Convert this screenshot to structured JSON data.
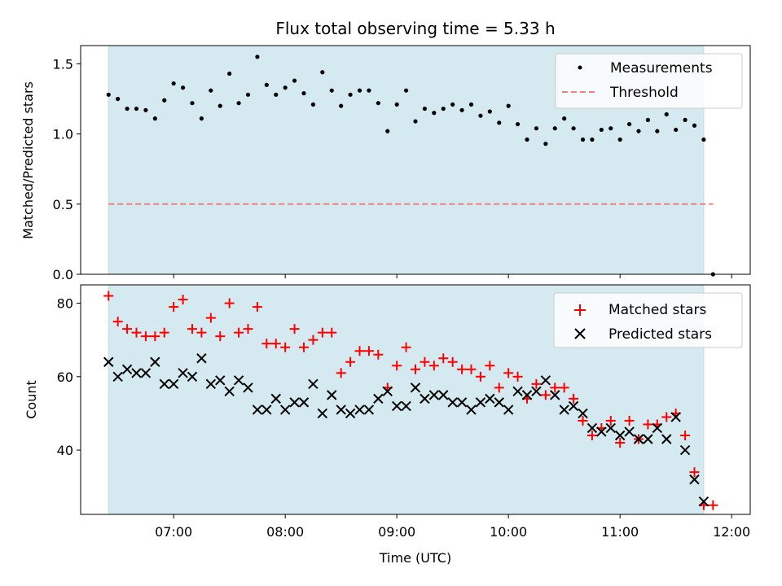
{
  "chart_data": [
    {
      "type": "scatter",
      "panel": "top",
      "title": "Flux total observing time = 5.33 h",
      "ylabel": "Matched/Predicted stars",
      "ylim": [
        0,
        1.63
      ],
      "yticks": [
        0.0,
        0.5,
        1.0,
        1.5
      ],
      "ytick_labels": [
        "0.0",
        "0.5",
        "1.0",
        "1.5"
      ],
      "shaded_span": {
        "start": "06:25",
        "end": "11:45",
        "color": "#d4eaf0"
      },
      "legend": {
        "placement": "top-right",
        "entries": [
          "Measurements",
          "Threshold"
        ]
      },
      "threshold": {
        "name": "Threshold",
        "value": 0.5,
        "x_start": "06:25",
        "x_end": "11:50",
        "color": "#f08080"
      },
      "series": [
        {
          "name": "Measurements",
          "color": "#000000",
          "x": [
            "06:25",
            "06:30",
            "06:35",
            "06:40",
            "06:45",
            "06:50",
            "06:55",
            "07:00",
            "07:05",
            "07:10",
            "07:15",
            "07:20",
            "07:25",
            "07:30",
            "07:35",
            "07:40",
            "07:45",
            "07:50",
            "07:55",
            "08:00",
            "08:05",
            "08:10",
            "08:15",
            "08:20",
            "08:25",
            "08:30",
            "08:35",
            "08:40",
            "08:45",
            "08:50",
            "08:55",
            "09:00",
            "09:05",
            "09:10",
            "09:15",
            "09:20",
            "09:25",
            "09:30",
            "09:35",
            "09:40",
            "09:45",
            "09:50",
            "09:55",
            "10:00",
            "10:05",
            "10:10",
            "10:15",
            "10:20",
            "10:25",
            "10:30",
            "10:35",
            "10:40",
            "10:45",
            "10:50",
            "10:55",
            "11:00",
            "11:05",
            "11:10",
            "11:15",
            "11:20",
            "11:25",
            "11:30",
            "11:35",
            "11:40",
            "11:45",
            "11:50"
          ],
          "y": [
            1.28,
            1.25,
            1.18,
            1.18,
            1.17,
            1.11,
            1.24,
            1.36,
            1.33,
            1.22,
            1.11,
            1.31,
            1.2,
            1.43,
            1.22,
            1.28,
            1.55,
            1.35,
            1.28,
            1.33,
            1.38,
            1.29,
            1.21,
            1.44,
            1.31,
            1.2,
            1.28,
            1.31,
            1.31,
            1.22,
            1.02,
            1.21,
            1.31,
            1.09,
            1.18,
            1.15,
            1.18,
            1.21,
            1.17,
            1.21,
            1.13,
            1.16,
            1.08,
            1.2,
            1.07,
            0.96,
            1.04,
            0.93,
            1.04,
            1.11,
            1.04,
            0.96,
            0.96,
            1.03,
            1.04,
            0.96,
            1.07,
            1.02,
            1.1,
            1.02,
            1.14,
            1.03,
            1.1,
            1.06,
            0.96,
            0.0
          ]
        }
      ]
    },
    {
      "type": "scatter",
      "panel": "bottom",
      "xlabel": "Time (UTC)",
      "ylabel": "Count",
      "ylim": [
        22.5,
        85
      ],
      "yticks": [
        40,
        60,
        80
      ],
      "ytick_labels": [
        "40",
        "60",
        "80"
      ],
      "xlim": [
        "06:10",
        "12:10"
      ],
      "xticks": [
        "07:00",
        "08:00",
        "09:00",
        "10:00",
        "11:00",
        "12:00"
      ],
      "shaded_span": {
        "start": "06:25",
        "end": "11:45",
        "color": "#d4eaf0"
      },
      "legend": {
        "placement": "top-right",
        "entries": [
          "Matched stars",
          "Predicted stars"
        ]
      },
      "series": [
        {
          "name": "Matched stars",
          "marker": "plus",
          "color": "#ff0000",
          "x": [
            "06:25",
            "06:30",
            "06:35",
            "06:40",
            "06:45",
            "06:50",
            "06:55",
            "07:00",
            "07:05",
            "07:10",
            "07:15",
            "07:20",
            "07:25",
            "07:30",
            "07:35",
            "07:40",
            "07:45",
            "07:50",
            "07:55",
            "08:00",
            "08:05",
            "08:10",
            "08:15",
            "08:20",
            "08:25",
            "08:30",
            "08:35",
            "08:40",
            "08:45",
            "08:50",
            "08:55",
            "09:00",
            "09:05",
            "09:10",
            "09:15",
            "09:20",
            "09:25",
            "09:30",
            "09:35",
            "09:40",
            "09:45",
            "09:50",
            "09:55",
            "10:00",
            "10:05",
            "10:10",
            "10:15",
            "10:20",
            "10:25",
            "10:30",
            "10:35",
            "10:40",
            "10:45",
            "10:50",
            "10:55",
            "11:00",
            "11:05",
            "11:10",
            "11:15",
            "11:20",
            "11:25",
            "11:30",
            "11:35",
            "11:40",
            "11:45",
            "11:50"
          ],
          "y": [
            82,
            75,
            73,
            72,
            71,
            71,
            72,
            79,
            81,
            73,
            72,
            76,
            71,
            80,
            72,
            73,
            79,
            69,
            69,
            68,
            73,
            68,
            70,
            72,
            72,
            61,
            64,
            67,
            67,
            66,
            57,
            63,
            68,
            62,
            64,
            63,
            65,
            64,
            62,
            62,
            60,
            63,
            57,
            61,
            60,
            54,
            58,
            55,
            57,
            57,
            54,
            48,
            44,
            46,
            48,
            42,
            48,
            43,
            47,
            47,
            49,
            50,
            44,
            34,
            25,
            25
          ]
        },
        {
          "name": "Predicted stars",
          "marker": "x",
          "color": "#000000",
          "x": [
            "06:25",
            "06:30",
            "06:35",
            "06:40",
            "06:45",
            "06:50",
            "06:55",
            "07:00",
            "07:05",
            "07:10",
            "07:15",
            "07:20",
            "07:25",
            "07:30",
            "07:35",
            "07:40",
            "07:45",
            "07:50",
            "07:55",
            "08:00",
            "08:05",
            "08:10",
            "08:15",
            "08:20",
            "08:25",
            "08:30",
            "08:35",
            "08:40",
            "08:45",
            "08:50",
            "08:55",
            "09:00",
            "09:05",
            "09:10",
            "09:15",
            "09:20",
            "09:25",
            "09:30",
            "09:35",
            "09:40",
            "09:45",
            "09:50",
            "09:55",
            "10:00",
            "10:05",
            "10:10",
            "10:15",
            "10:20",
            "10:25",
            "10:30",
            "10:35",
            "10:40",
            "10:45",
            "10:50",
            "10:55",
            "11:00",
            "11:05",
            "11:10",
            "11:15",
            "11:20",
            "11:25",
            "11:30",
            "11:35",
            "11:40",
            "11:45"
          ],
          "y": [
            64,
            60,
            62,
            61,
            61,
            64,
            58,
            58,
            61,
            60,
            65,
            58,
            59,
            56,
            59,
            57,
            51,
            51,
            54,
            51,
            53,
            53,
            58,
            50,
            55,
            51,
            50,
            51,
            51,
            54,
            56,
            52,
            52,
            57,
            54,
            55,
            55,
            53,
            53,
            51,
            53,
            54,
            53,
            51,
            56,
            55,
            56,
            59,
            55,
            51,
            52,
            50,
            46,
            45,
            46,
            44,
            45,
            43,
            43,
            46,
            43,
            49,
            40,
            32,
            26
          ]
        }
      ]
    }
  ]
}
